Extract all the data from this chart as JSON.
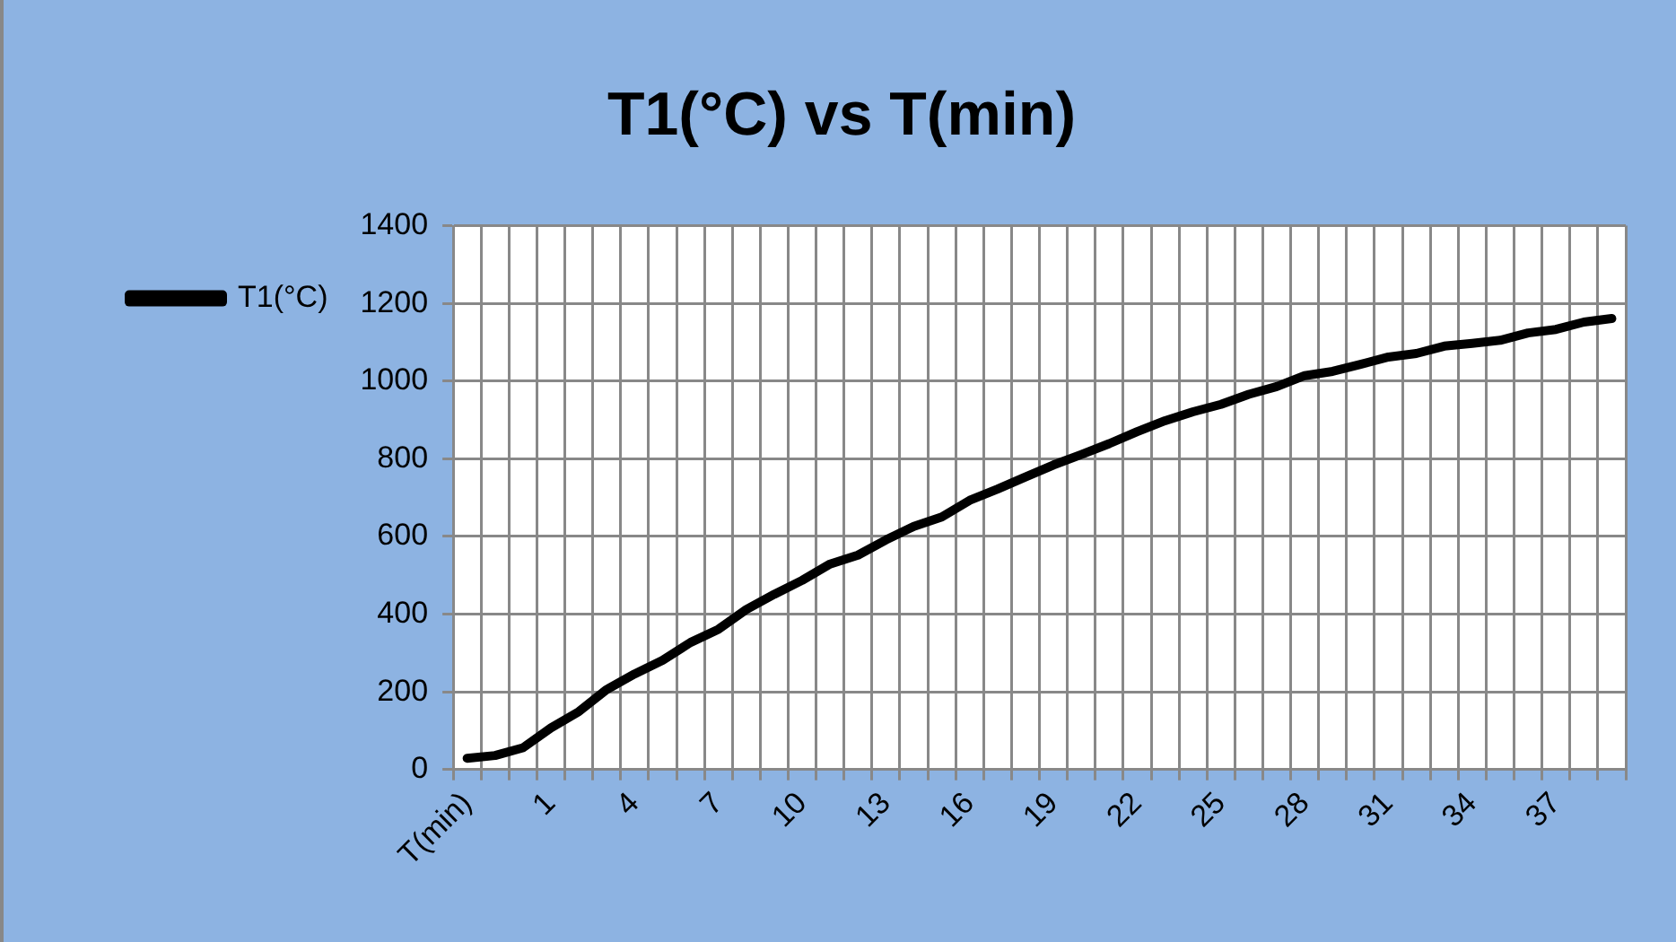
{
  "chart_data": {
    "type": "line",
    "title": "T1(°C) vs T(min)",
    "categories": [
      "T(min)",
      null,
      null,
      "1",
      null,
      null,
      "4",
      null,
      null,
      "7",
      null,
      null,
      "10",
      null,
      null,
      "13",
      null,
      null,
      "16",
      null,
      null,
      "19",
      null,
      null,
      "22",
      null,
      null,
      "25",
      null,
      null,
      "28",
      null,
      null,
      "31",
      null,
      null,
      "34",
      null,
      null,
      "37",
      null,
      null
    ],
    "series": [
      {
        "name": "T1(°C)",
        "color": "#000000",
        "values": [
          29,
          36,
          56,
          107,
          149,
          206,
          246,
          281,
          327,
          361,
          412,
          451,
          487,
          529,
          552,
          591,
          626,
          650,
          693,
          722,
          753,
          784,
          811,
          839,
          870,
          898,
          921,
          940,
          966,
          986,
          1014,
          1025,
          1043,
          1062,
          1071,
          1090,
          1097,
          1105,
          1124,
          1133,
          1152,
          1161
        ]
      }
    ],
    "ylim": [
      0,
      1400
    ],
    "yticks": [
      0,
      200,
      400,
      600,
      800,
      {
        "value": 1000,
        "label": "1000"
      },
      {
        "value": 1200,
        "label": "1200"
      },
      {
        "value": 1400,
        "label": "1400"
      }
    ],
    "grid": true,
    "legend": "left",
    "marker": "none",
    "line_style": "solid"
  }
}
